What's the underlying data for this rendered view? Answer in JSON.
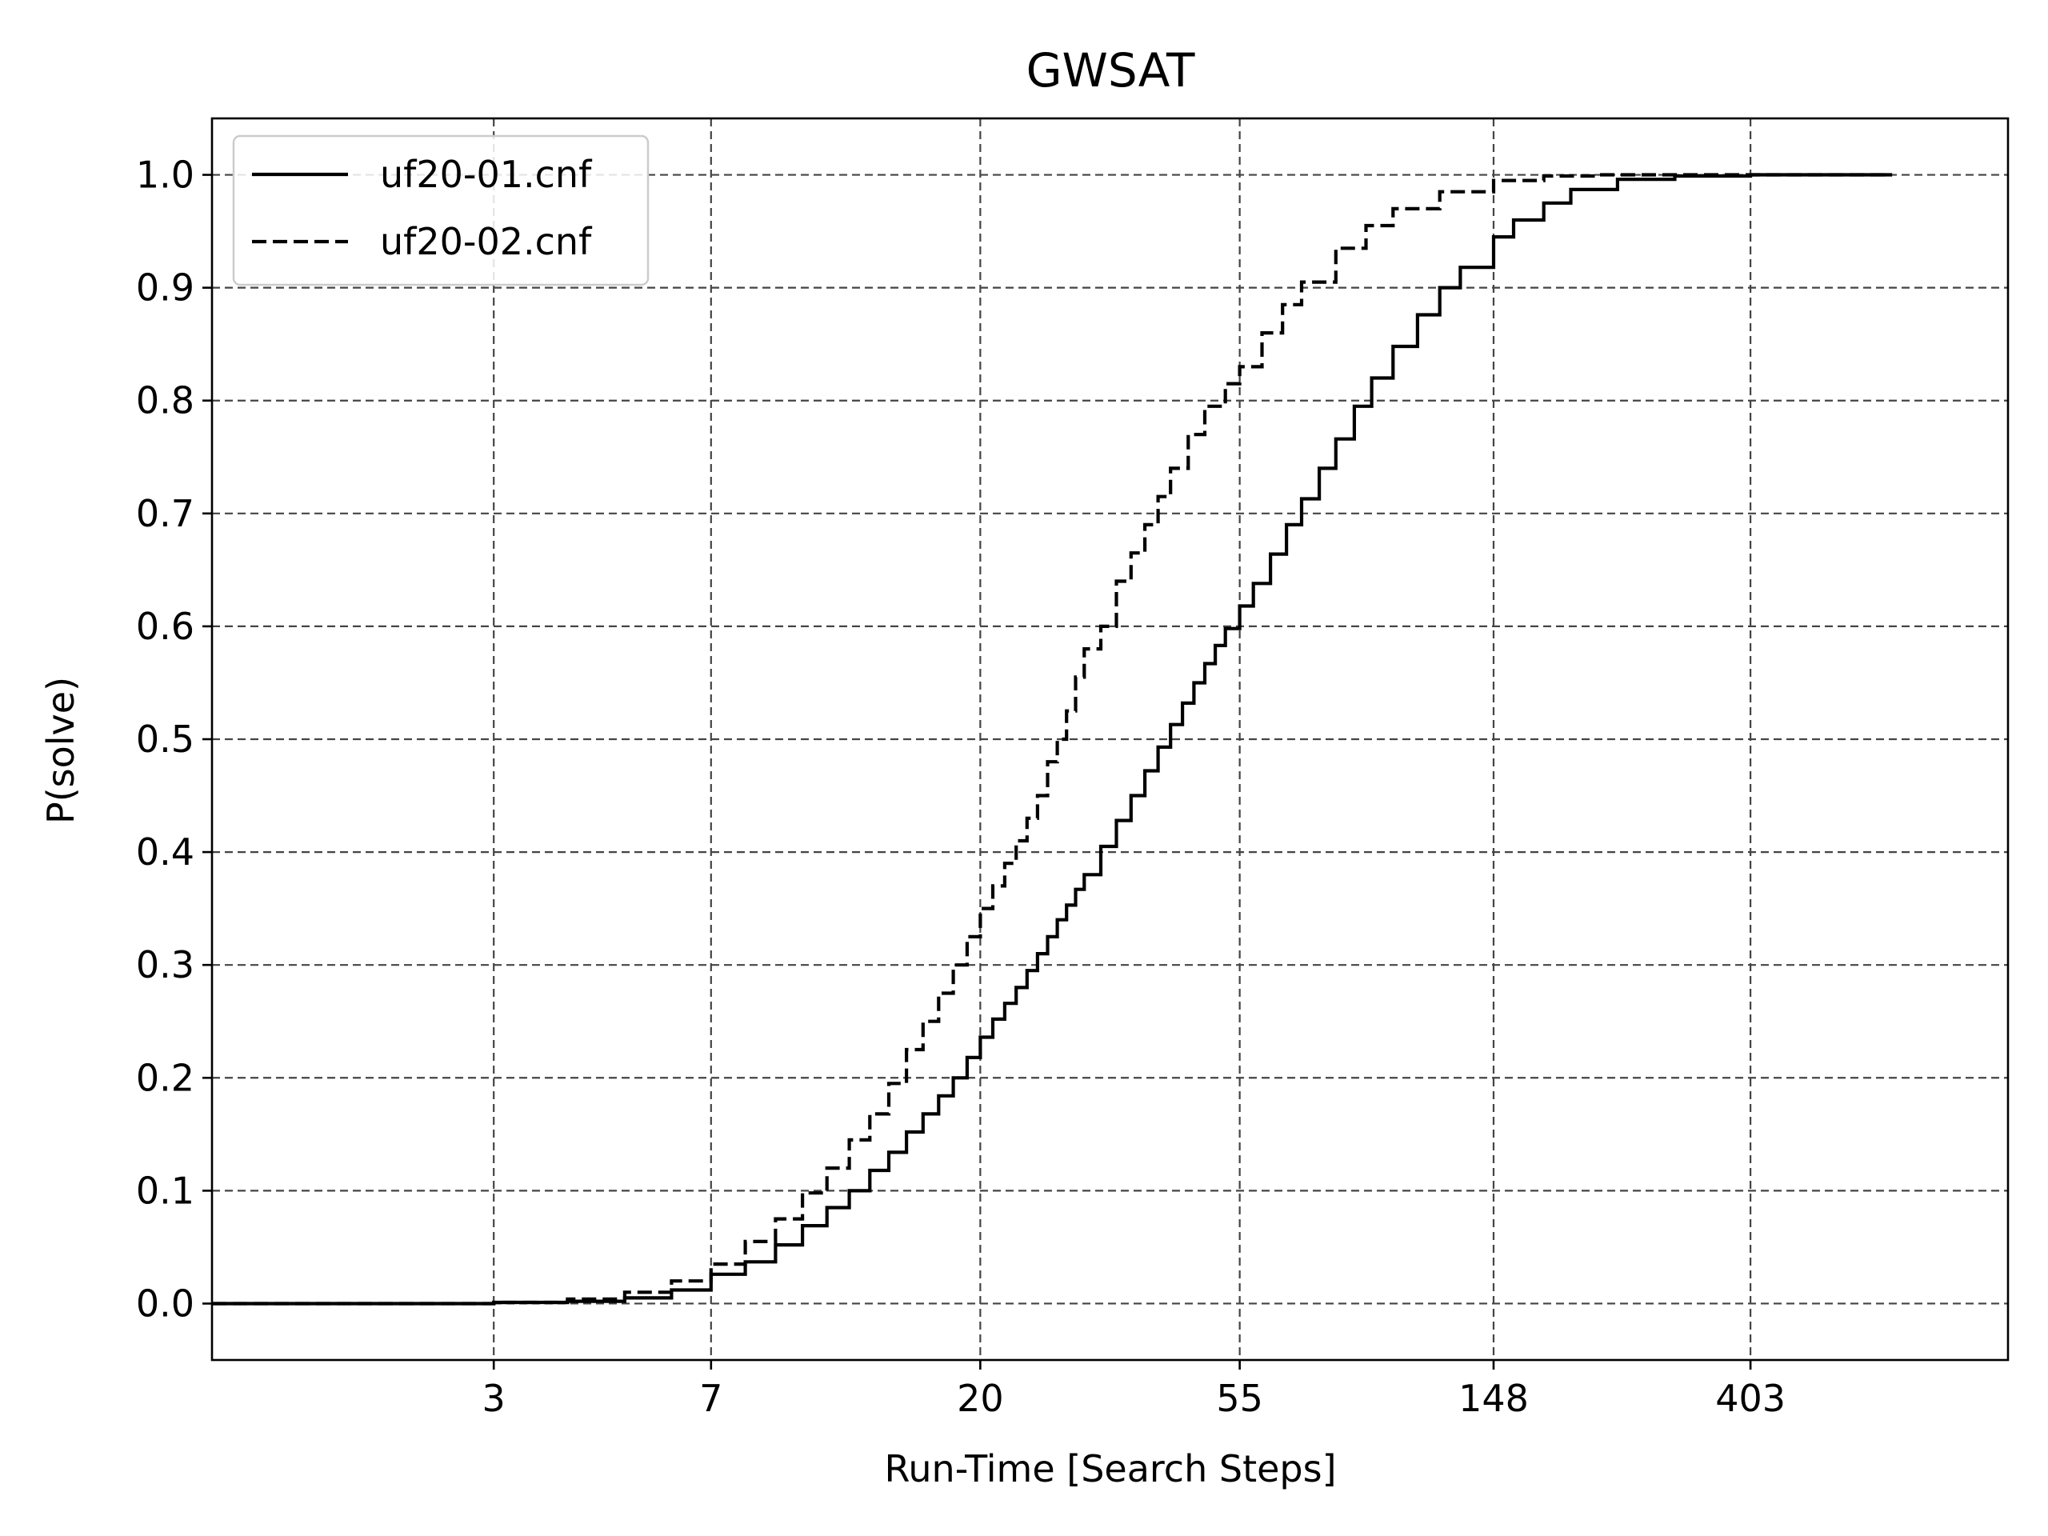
{
  "chart_data": {
    "type": "line",
    "title": "GWSAT",
    "xlabel": "Run-Time [Search Steps]",
    "ylabel": "P(solve)",
    "xscale": "log",
    "xlim": [
      1,
      1100
    ],
    "ylim": [
      -0.05,
      1.05
    ],
    "xticks": [
      3,
      7,
      20,
      55,
      148,
      403
    ],
    "xtick_labels": [
      "3",
      "7",
      "20",
      "55",
      "148",
      "403"
    ],
    "yticks": [
      0.0,
      0.1,
      0.2,
      0.3,
      0.4,
      0.5,
      0.6,
      0.7,
      0.8,
      0.9,
      1.0
    ],
    "ytick_labels": [
      "0.0",
      "0.1",
      "0.2",
      "0.3",
      "0.4",
      "0.5",
      "0.6",
      "0.7",
      "0.8",
      "0.9",
      "1.0"
    ],
    "grid": true,
    "legend": {
      "position": "top-left"
    },
    "series": [
      {
        "name": "uf20-01.cnf",
        "style": "solid",
        "x": [
          1,
          2,
          3,
          4,
          5,
          6,
          7,
          8,
          9,
          10,
          11,
          12,
          13,
          14,
          15,
          16,
          17,
          18,
          19,
          20,
          21,
          22,
          23,
          24,
          25,
          26,
          27,
          28,
          29,
          30,
          32,
          34,
          36,
          38,
          40,
          42,
          44,
          46,
          48,
          50,
          52,
          55,
          58,
          62,
          66,
          70,
          75,
          80,
          86,
          92,
          100,
          110,
          120,
          130,
          148,
          160,
          180,
          200,
          240,
          300,
          403,
          500,
          600,
          700
        ],
        "y": [
          0.0,
          0.0,
          0.001,
          0.002,
          0.005,
          0.012,
          0.026,
          0.037,
          0.052,
          0.069,
          0.085,
          0.1,
          0.118,
          0.134,
          0.152,
          0.168,
          0.184,
          0.2,
          0.218,
          0.236,
          0.252,
          0.266,
          0.28,
          0.295,
          0.31,
          0.325,
          0.34,
          0.353,
          0.367,
          0.38,
          0.405,
          0.428,
          0.45,
          0.472,
          0.493,
          0.513,
          0.532,
          0.55,
          0.567,
          0.583,
          0.598,
          0.618,
          0.638,
          0.664,
          0.69,
          0.713,
          0.74,
          0.766,
          0.795,
          0.82,
          0.848,
          0.876,
          0.9,
          0.918,
          0.945,
          0.96,
          0.975,
          0.987,
          0.996,
          0.999,
          1.0,
          1.0,
          1.0,
          1.0
        ]
      },
      {
        "name": "uf20-02.cnf",
        "style": "dashed",
        "x": [
          1,
          2,
          3,
          4,
          5,
          6,
          7,
          8,
          9,
          10,
          11,
          12,
          13,
          14,
          15,
          16,
          17,
          18,
          19,
          20,
          21,
          22,
          23,
          24,
          25,
          26,
          27,
          28,
          29,
          30,
          32,
          34,
          36,
          38,
          40,
          42,
          45,
          48,
          52,
          55,
          60,
          65,
          70,
          80,
          90,
          100,
          120,
          148,
          180,
          220,
          300,
          403,
          500,
          600,
          700
        ],
        "y": [
          0.0,
          0.0,
          0.001,
          0.004,
          0.01,
          0.02,
          0.035,
          0.055,
          0.075,
          0.098,
          0.12,
          0.145,
          0.168,
          0.195,
          0.225,
          0.25,
          0.275,
          0.3,
          0.325,
          0.35,
          0.37,
          0.39,
          0.41,
          0.43,
          0.45,
          0.48,
          0.5,
          0.525,
          0.555,
          0.58,
          0.6,
          0.64,
          0.665,
          0.69,
          0.715,
          0.74,
          0.77,
          0.795,
          0.815,
          0.83,
          0.86,
          0.885,
          0.905,
          0.935,
          0.955,
          0.97,
          0.985,
          0.995,
          0.999,
          1.0,
          1.0,
          1.0,
          1.0,
          1.0,
          1.0
        ]
      }
    ]
  }
}
